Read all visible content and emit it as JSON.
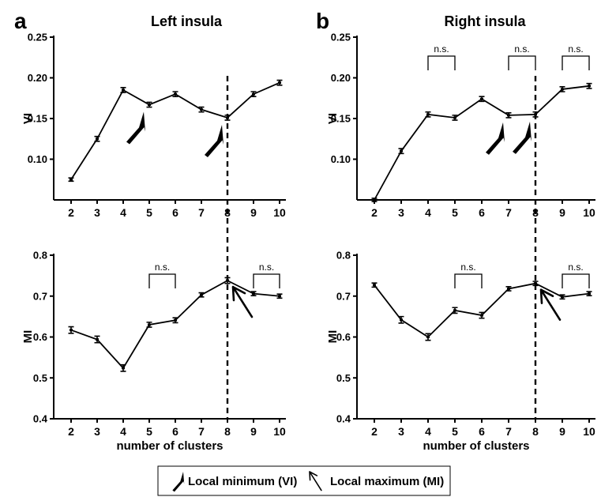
{
  "panel_letters": [
    "a",
    "b"
  ],
  "legend": {
    "local_min": "Local minimum (VI)",
    "local_max": "Local maximum (MI)"
  },
  "colors": {
    "ink": "#000000",
    "background": "#ffffff"
  },
  "chart_data": [
    {
      "type": "line",
      "panel": "a",
      "title": "Left insula",
      "metric": "VI",
      "ylabel": "VI",
      "xlabel": "",
      "x": [
        2,
        3,
        4,
        5,
        6,
        7,
        8,
        9,
        10
      ],
      "values": [
        0.075,
        0.125,
        0.185,
        0.167,
        0.18,
        0.161,
        0.151,
        0.18,
        0.194
      ],
      "errors": [
        0.002,
        0.003,
        0.003,
        0.003,
        0.003,
        0.003,
        0.003,
        0.003,
        0.003
      ],
      "xlim": [
        2,
        10
      ],
      "ylim": [
        0.05,
        0.25
      ],
      "yticks": [
        "0.10",
        "0.15",
        "0.20",
        "0.25"
      ],
      "ns_brackets": [],
      "local_min_arrows": [
        5,
        8
      ],
      "local_max_arrows": [],
      "dashed_x": 8
    },
    {
      "type": "line",
      "panel": "b",
      "title": "Right insula",
      "metric": "VI",
      "ylabel": "VI",
      "xlabel": "",
      "x": [
        2,
        3,
        4,
        5,
        6,
        7,
        8,
        9,
        10
      ],
      "values": [
        0.05,
        0.11,
        0.155,
        0.151,
        0.174,
        0.154,
        0.155,
        0.186,
        0.19
      ],
      "errors": [
        0.002,
        0.003,
        0.003,
        0.003,
        0.003,
        0.003,
        0.003,
        0.003,
        0.003
      ],
      "xlim": [
        2,
        10
      ],
      "ylim": [
        0.05,
        0.25
      ],
      "yticks": [
        "0.10",
        "0.15",
        "0.20",
        "0.25"
      ],
      "ns_brackets": [
        [
          4,
          5
        ],
        [
          7,
          8
        ],
        [
          9,
          10
        ]
      ],
      "ns_label": "n.s.",
      "local_min_arrows": [
        7,
        8
      ],
      "local_max_arrows": [],
      "dashed_x": 8
    },
    {
      "type": "line",
      "panel": "a",
      "title": "",
      "metric": "MI",
      "ylabel": "MI",
      "xlabel": "number of clusters",
      "x": [
        2,
        3,
        4,
        5,
        6,
        7,
        8,
        9,
        10
      ],
      "values": [
        0.617,
        0.594,
        0.524,
        0.63,
        0.641,
        0.703,
        0.738,
        0.706,
        0.7
      ],
      "errors": [
        0.008,
        0.008,
        0.008,
        0.006,
        0.006,
        0.005,
        0.007,
        0.005,
        0.005
      ],
      "xlim": [
        2,
        10
      ],
      "ylim": [
        0.4,
        0.8
      ],
      "yticks": [
        "0.4",
        "0.5",
        "0.6",
        "0.7",
        "0.8"
      ],
      "ns_brackets": [
        [
          5,
          6
        ],
        [
          9,
          10
        ]
      ],
      "ns_label": "n.s.",
      "local_min_arrows": [],
      "local_max_arrows": [
        8
      ],
      "dashed_x": 8
    },
    {
      "type": "line",
      "panel": "b",
      "title": "",
      "metric": "MI",
      "ylabel": "MI",
      "xlabel": "number of clusters",
      "x": [
        2,
        3,
        4,
        5,
        6,
        7,
        8,
        9,
        10
      ],
      "values": [
        0.727,
        0.642,
        0.6,
        0.665,
        0.653,
        0.718,
        0.731,
        0.698,
        0.706
      ],
      "errors": [
        0.005,
        0.008,
        0.008,
        0.007,
        0.007,
        0.005,
        0.005,
        0.005,
        0.005
      ],
      "xlim": [
        2,
        10
      ],
      "ylim": [
        0.4,
        0.8
      ],
      "yticks": [
        "0.4",
        "0.5",
        "0.6",
        "0.7",
        "0.8"
      ],
      "ns_brackets": [
        [
          5,
          6
        ],
        [
          9,
          10
        ]
      ],
      "ns_label": "n.s.",
      "local_min_arrows": [],
      "local_max_arrows": [
        8
      ],
      "dashed_x": 8
    }
  ]
}
